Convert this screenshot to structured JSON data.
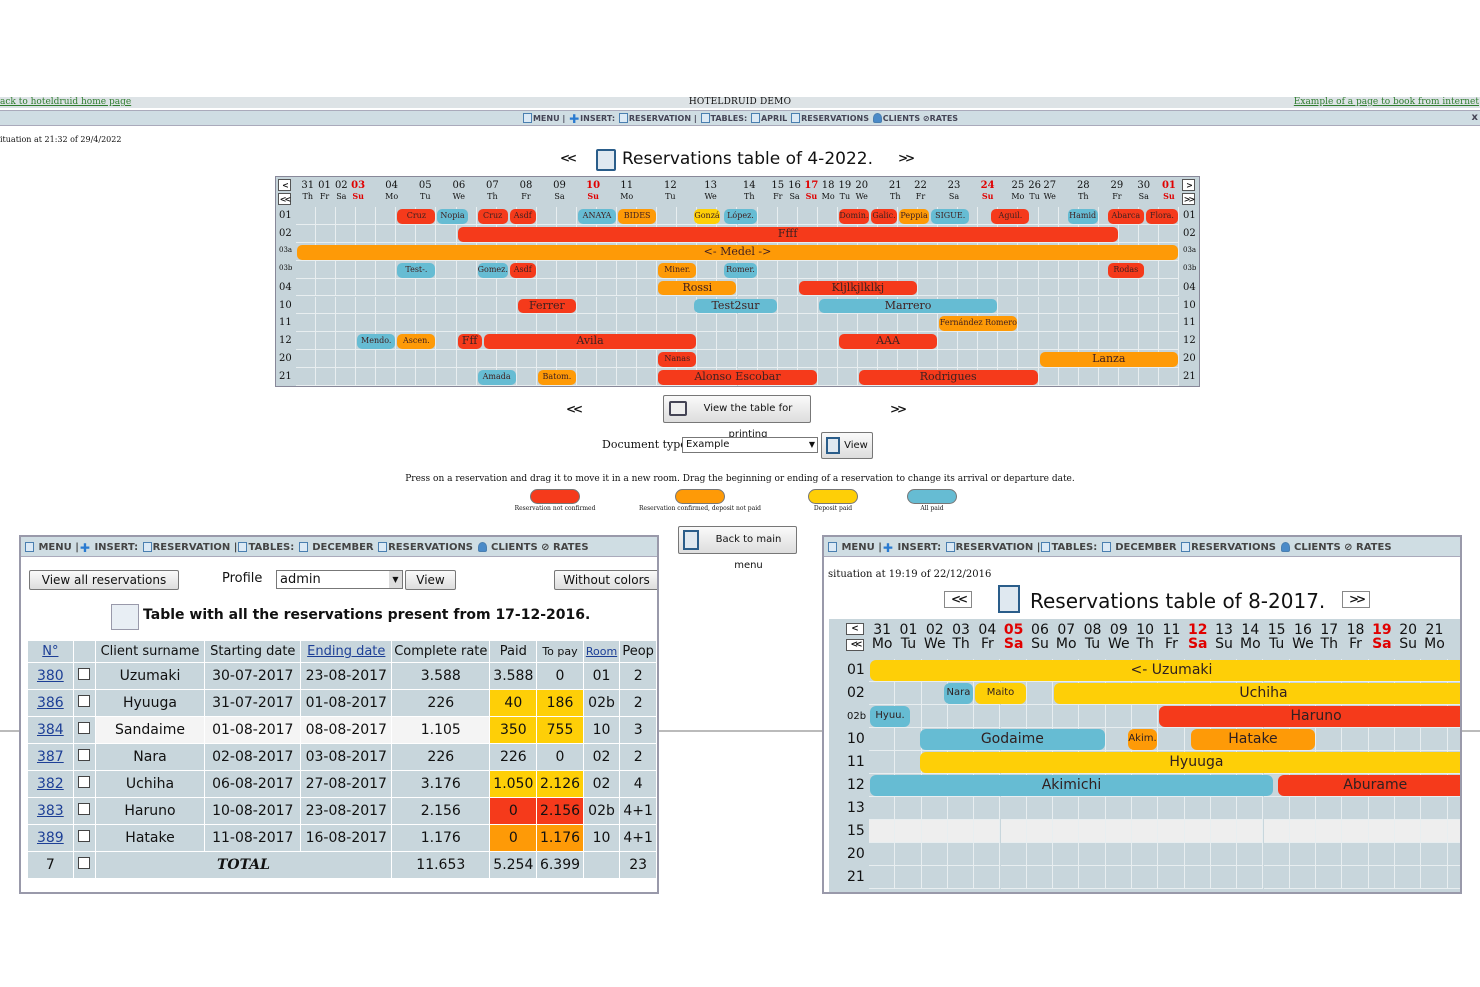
{
  "top": {
    "left_link": "ack to hoteldruid home page",
    "title": "HOTELDRUID DEMO",
    "right_link": "Example of a page to book from internet"
  },
  "menu": {
    "menu": "MENU",
    "insert": "INSERT:",
    "reservation": "RESERVATION",
    "tables": "TABLES:",
    "month": "APRIL",
    "reservations": "RESERVATIONS",
    "clients": "CLIENTS",
    "rates": "RATES",
    "close": "x"
  },
  "situation": "ituation at 21:32 of 29/4/2022",
  "table_title": "Reservations table of 4-2022.",
  "nav": {
    "prev": "<<",
    "next": ">>",
    "lt": "<",
    "gt": ">"
  },
  "days": [
    {
      "n": "31",
      "d": "Th"
    },
    {
      "n": "01",
      "d": "Fr"
    },
    {
      "n": "02",
      "d": "Sa"
    },
    {
      "n": "03",
      "d": "Su",
      "sun": true
    },
    {
      "n": "04",
      "d": "Mo"
    },
    {
      "n": "05",
      "d": "Tu"
    },
    {
      "n": "06",
      "d": "We"
    },
    {
      "n": "07",
      "d": "Th"
    },
    {
      "n": "08",
      "d": "Fr"
    },
    {
      "n": "09",
      "d": "Sa"
    },
    {
      "n": "10",
      "d": "Su",
      "sun": true
    },
    {
      "n": "11",
      "d": "Mo"
    },
    {
      "n": "12",
      "d": "Tu"
    },
    {
      "n": "13",
      "d": "We"
    },
    {
      "n": "14",
      "d": "Th"
    },
    {
      "n": "15",
      "d": "Fr"
    },
    {
      "n": "16",
      "d": "Sa"
    },
    {
      "n": "17",
      "d": "Su",
      "sun": true
    },
    {
      "n": "18",
      "d": "Mo"
    },
    {
      "n": "19",
      "d": "Tu"
    },
    {
      "n": "20",
      "d": "We"
    },
    {
      "n": "21",
      "d": "Th"
    },
    {
      "n": "22",
      "d": "Fr"
    },
    {
      "n": "23",
      "d": "Sa"
    },
    {
      "n": "24",
      "d": "Su",
      "sun": true
    },
    {
      "n": "25",
      "d": "Mo"
    },
    {
      "n": "26",
      "d": "Tu"
    },
    {
      "n": "27",
      "d": "We"
    },
    {
      "n": "28",
      "d": "Th"
    },
    {
      "n": "29",
      "d": "Fr"
    },
    {
      "n": "30",
      "d": "Sa"
    },
    {
      "n": "01",
      "d": "Su",
      "sun": true
    }
  ],
  "rooms": [
    "01",
    "02",
    "03a",
    "03b",
    "04",
    "10",
    "11",
    "12",
    "20",
    "21"
  ],
  "reservations": [
    {
      "row": 0,
      "s": 5,
      "e": 7,
      "c": "red",
      "t": "Cruz"
    },
    {
      "row": 0,
      "s": 7,
      "e": 8.6,
      "c": "blu",
      "t": "Nopia"
    },
    {
      "row": 0,
      "s": 9,
      "e": 10.6,
      "c": "red",
      "t": "Cruz"
    },
    {
      "row": 0,
      "s": 10.6,
      "e": 12,
      "c": "red",
      "t": "Asdf"
    },
    {
      "row": 0,
      "s": 14,
      "e": 16,
      "c": "blu",
      "t": "ANAYA"
    },
    {
      "row": 0,
      "s": 16,
      "e": 18,
      "c": "org",
      "t": "BIDES"
    },
    {
      "row": 0,
      "s": 19.8,
      "e": 21.2,
      "c": "yel",
      "t": "Gonzá."
    },
    {
      "row": 0,
      "s": 21.3,
      "e": 23,
      "c": "blu",
      "t": "López."
    },
    {
      "row": 0,
      "s": 27,
      "e": 28.6,
      "c": "red",
      "t": "Domin."
    },
    {
      "row": 0,
      "s": 28.6,
      "e": 30,
      "c": "red",
      "t": "Galic."
    },
    {
      "row": 0,
      "s": 30,
      "e": 31.6,
      "c": "org",
      "t": "Peppia"
    },
    {
      "row": 0,
      "s": 31.6,
      "e": 33.6,
      "c": "blu",
      "t": "SIGUE."
    },
    {
      "row": 0,
      "s": 34.6,
      "e": 36.6,
      "c": "red",
      "t": "Aguil."
    },
    {
      "row": 0,
      "s": 38.4,
      "e": 40,
      "c": "blu",
      "t": "Hamid"
    },
    {
      "row": 0,
      "s": 40.4,
      "e": 42.3,
      "c": "red",
      "t": "Abarca"
    },
    {
      "row": 0,
      "s": 42.3,
      "e": 44,
      "c": "red",
      "t": "Flora."
    },
    {
      "row": 1,
      "s": 8,
      "e": 41,
      "c": "red",
      "t": "Ffff",
      "big": true
    },
    {
      "row": 2,
      "s": 0,
      "e": 44,
      "c": "org",
      "t": "<- Medel ->",
      "big": true
    },
    {
      "row": 3,
      "s": 5,
      "e": 7,
      "c": "blu",
      "t": "Test-."
    },
    {
      "row": 3,
      "s": 9,
      "e": 10.6,
      "c": "blu",
      "t": "Gomez."
    },
    {
      "row": 3,
      "s": 10.6,
      "e": 12,
      "c": "red",
      "t": "Asdf"
    },
    {
      "row": 3,
      "s": 18,
      "e": 20,
      "c": "org",
      "t": "Miner."
    },
    {
      "row": 3,
      "s": 21.3,
      "e": 23,
      "c": "blu",
      "t": "Romer."
    },
    {
      "row": 3,
      "s": 40.4,
      "e": 42.3,
      "c": "red",
      "t": "Rodas"
    },
    {
      "row": 4,
      "s": 18,
      "e": 22,
      "c": "org",
      "t": "Rossi",
      "big": true
    },
    {
      "row": 4,
      "s": 25,
      "e": 31,
      "c": "red",
      "t": "Kljlkjlklkj",
      "big": true
    },
    {
      "row": 5,
      "s": 11,
      "e": 14,
      "c": "red",
      "t": "Ferrer",
      "big": true
    },
    {
      "row": 5,
      "s": 19.8,
      "e": 24,
      "c": "blu",
      "t": "Test2sur",
      "big": true
    },
    {
      "row": 5,
      "s": 26,
      "e": 35,
      "c": "blu",
      "t": "Marrero",
      "big": true
    },
    {
      "row": 6,
      "s": 32,
      "e": 36,
      "c": "org",
      "t": "Fernández Romero"
    },
    {
      "row": 7,
      "s": 3,
      "e": 5,
      "c": "blu",
      "t": "Mendo."
    },
    {
      "row": 7,
      "s": 5,
      "e": 7,
      "c": "org",
      "t": "Ascen."
    },
    {
      "row": 7,
      "s": 8,
      "e": 9.3,
      "c": "red",
      "t": "Fff",
      "big": true
    },
    {
      "row": 7,
      "s": 9.3,
      "e": 20,
      "c": "red",
      "t": "Avila",
      "big": true
    },
    {
      "row": 7,
      "s": 27,
      "e": 32,
      "c": "red",
      "t": "AAA",
      "big": true
    },
    {
      "row": 8,
      "s": 18,
      "e": 20,
      "c": "red",
      "t": "Nanas"
    },
    {
      "row": 8,
      "s": 37,
      "e": 44,
      "c": "org",
      "t": "Lanza",
      "big": true
    },
    {
      "row": 9,
      "s": 9,
      "e": 11,
      "c": "blu",
      "t": "Amada"
    },
    {
      "row": 9,
      "s": 12,
      "e": 14,
      "c": "org",
      "t": "Batom."
    },
    {
      "row": 9,
      "s": 18,
      "e": 26,
      "c": "red",
      "t": "Alonso Escobar",
      "big": true
    },
    {
      "row": 9,
      "s": 28,
      "e": 37,
      "c": "red",
      "t": "Rodrigues",
      "big": true
    }
  ],
  "print_button": "View the table for printing",
  "doc_type": {
    "label": "Document type",
    "value": "Example",
    "button": "View"
  },
  "instructions": "Press on a reservation and drag it to move it in a new room. Drag the beginning or ending of a reservation to change its arrival or departure date.",
  "legend": [
    {
      "label": "Reservation not confirmed",
      "color": "#f53a1b"
    },
    {
      "label": "Reservation confirmed, deposit not paid",
      "color": "#fe9a07"
    },
    {
      "label": "Deposit paid",
      "color": "#fecf07"
    },
    {
      "label": "All paid",
      "color": "#66bcd3"
    }
  ],
  "back_button": "Back to main menu",
  "left_panel": {
    "menu": {
      "menu": "MENU",
      "insert": "INSERT:",
      "reservation": "RESERVATION",
      "tables": "TABLES:",
      "month": "DECEMBER",
      "reservations": "RESERVATIONS",
      "clients": "CLIENTS",
      "rates": "RATES"
    },
    "view_all": "View all reservations",
    "profile_label": "Profile",
    "profile_value": "admin",
    "view": "View",
    "without_colors": "Without colors",
    "title": "Table with all the reservations present from 17-12-2016.",
    "headers": [
      "N°",
      "",
      "Client surname",
      "Starting date",
      "Ending date",
      "Complete rate",
      "Paid",
      "To pay",
      "Room",
      "Peop"
    ],
    "rows": [
      {
        "n": "380",
        "name": "Uzumaki",
        "start": "30-07-2017",
        "end": "23-08-2017",
        "rate": "3.588",
        "paid": "3.588",
        "topay": "0",
        "room": "01",
        "people": "2"
      },
      {
        "n": "386",
        "name": "Hyuuga",
        "start": "31-07-2017",
        "end": "01-08-2017",
        "rate": "226",
        "paid": "40",
        "topay": "186",
        "room": "02b",
        "people": "2",
        "pc": "cy",
        "tc": "cy"
      },
      {
        "n": "384",
        "name": "Sandaime",
        "start": "01-08-2017",
        "end": "08-08-2017",
        "rate": "1.105",
        "paid": "350",
        "topay": "755",
        "room": "10",
        "people": "3",
        "pc": "cy",
        "tc": "cy",
        "alt": true
      },
      {
        "n": "387",
        "name": "Nara",
        "start": "02-08-2017",
        "end": "03-08-2017",
        "rate": "226",
        "paid": "226",
        "topay": "0",
        "room": "02",
        "people": "2"
      },
      {
        "n": "382",
        "name": "Uchiha",
        "start": "06-08-2017",
        "end": "27-08-2017",
        "rate": "3.176",
        "paid": "1.050",
        "topay": "2.126",
        "room": "02",
        "people": "4",
        "pc": "cy",
        "tc": "cy"
      },
      {
        "n": "383",
        "name": "Haruno",
        "start": "10-08-2017",
        "end": "23-08-2017",
        "rate": "2.156",
        "paid": "0",
        "topay": "2.156",
        "room": "02b",
        "people": "4+1",
        "pc": "cr",
        "tc": "cr"
      },
      {
        "n": "389",
        "name": "Hatake",
        "start": "11-08-2017",
        "end": "16-08-2017",
        "rate": "1.176",
        "paid": "0",
        "topay": "1.176",
        "room": "10",
        "people": "4+1",
        "pc": "co",
        "tc": "co"
      }
    ],
    "total": {
      "count": "7",
      "label": "TOTAL",
      "rate": "11.653",
      "paid": "5.254",
      "topay": "6.399",
      "people": "23"
    }
  },
  "right_panel": {
    "menu": {
      "menu": "MENU",
      "insert": "INSERT:",
      "reservation": "RESERVATION",
      "tables": "TABLES:",
      "month": "DECEMBER",
      "reservations": "RESERVATIONS",
      "clients": "CLIENTS",
      "rates": "RATES"
    },
    "situation": "situation at 19:19 of 22/12/2016",
    "title": "Reservations table of 8-2017.",
    "days": [
      {
        "n": "31",
        "d": "Mo"
      },
      {
        "n": "01",
        "d": "Tu"
      },
      {
        "n": "02",
        "d": "We"
      },
      {
        "n": "03",
        "d": "Th"
      },
      {
        "n": "04",
        "d": "Fr"
      },
      {
        "n": "05",
        "d": "Sa",
        "sun": true
      },
      {
        "n": "06",
        "d": "Su"
      },
      {
        "n": "07",
        "d": "Mo"
      },
      {
        "n": "08",
        "d": "Tu"
      },
      {
        "n": "09",
        "d": "We"
      },
      {
        "n": "10",
        "d": "Th"
      },
      {
        "n": "11",
        "d": "Fr"
      },
      {
        "n": "12",
        "d": "Sa",
        "sun": true
      },
      {
        "n": "13",
        "d": "Su"
      },
      {
        "n": "14",
        "d": "Mo"
      },
      {
        "n": "15",
        "d": "Tu"
      },
      {
        "n": "16",
        "d": "We"
      },
      {
        "n": "17",
        "d": "Th"
      },
      {
        "n": "18",
        "d": "Fr"
      },
      {
        "n": "19",
        "d": "Sa",
        "sun": true
      },
      {
        "n": "20",
        "d": "Su"
      },
      {
        "n": "21",
        "d": "Mo"
      }
    ],
    "rooms": [
      "01",
      "02",
      "02b",
      "10",
      "11",
      "12",
      "13",
      "15",
      "20",
      "21"
    ],
    "reservations": [
      {
        "row": 0,
        "s": 0,
        "e": 23,
        "c": "yel",
        "t": "<- Uzumaki"
      },
      {
        "row": 1,
        "s": 2.8,
        "e": 4,
        "c": "blu",
        "t": "Nara",
        "sm": true
      },
      {
        "row": 1,
        "s": 4,
        "e": 6,
        "c": "yel",
        "t": "Maito",
        "sm": true
      },
      {
        "row": 1,
        "s": 7,
        "e": 23,
        "c": "yel",
        "t": "Uchiha"
      },
      {
        "row": 2,
        "s": 0,
        "e": 1.6,
        "c": "blu",
        "t": "Hyuu.",
        "sm": true
      },
      {
        "row": 2,
        "s": 11,
        "e": 23,
        "c": "red",
        "t": "Haruno"
      },
      {
        "row": 3,
        "s": 1.9,
        "e": 9,
        "c": "blu",
        "t": "Godaime"
      },
      {
        "row": 3,
        "s": 9.8,
        "e": 11,
        "c": "org",
        "t": "Akim.",
        "sm": true
      },
      {
        "row": 3,
        "s": 12.2,
        "e": 17,
        "c": "org",
        "t": "Hatake"
      },
      {
        "row": 4,
        "s": 1.9,
        "e": 23,
        "c": "yel",
        "t": "Hyuuga"
      },
      {
        "row": 5,
        "s": 0,
        "e": 15.4,
        "c": "blu",
        "t": "Akimichi"
      },
      {
        "row": 5,
        "s": 15.5,
        "e": 23,
        "c": "red",
        "t": "Aburame"
      }
    ]
  }
}
